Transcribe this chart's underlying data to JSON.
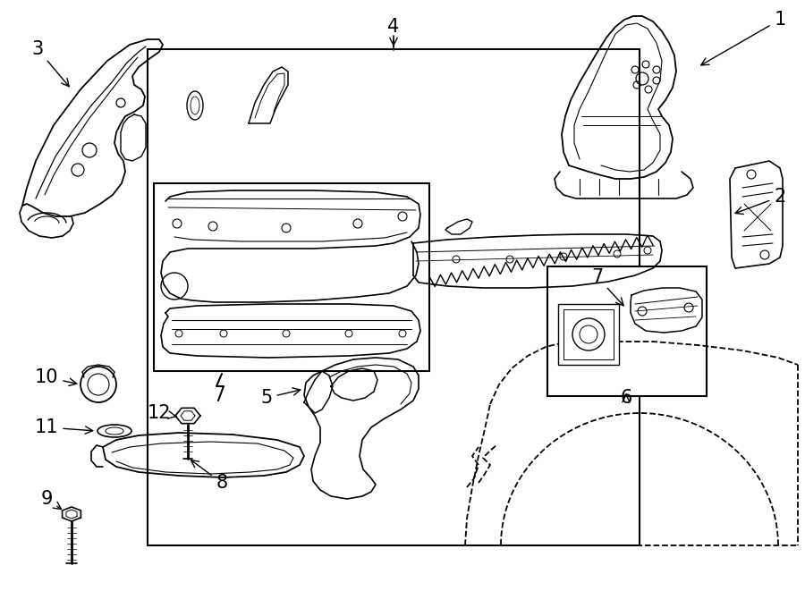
{
  "bg_color": "#ffffff",
  "line_color": "#000000",
  "fig_width": 9.0,
  "fig_height": 6.61,
  "dpi": 100,
  "font_size_callout": 15,
  "lw": 1.2
}
